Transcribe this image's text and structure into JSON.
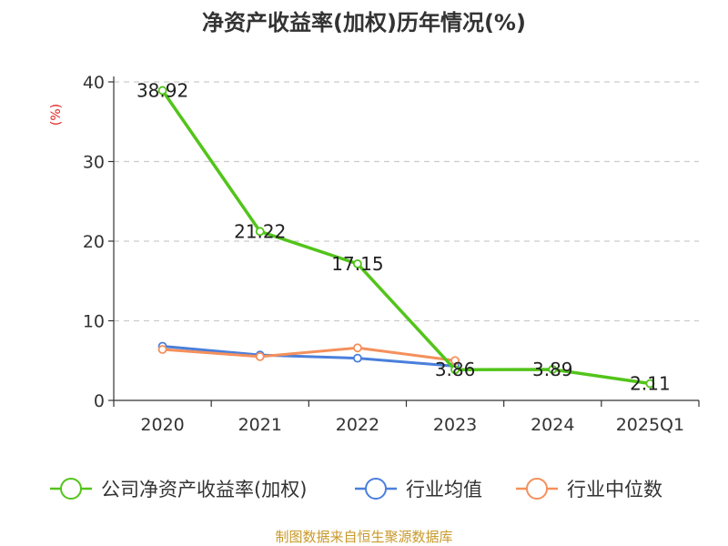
{
  "colors": {
    "roe": "#52c41a",
    "avg": "#4a7fdc",
    "median": "#f4905c",
    "grid": "#cccccc",
    "axis": "#333333"
  },
  "chart_data": {
    "type": "line",
    "title": "净资产收益率(加权)历年情况(%)",
    "ylabel": "(%)",
    "xlabel": "",
    "categories": [
      "2020",
      "2021",
      "2022",
      "2023",
      "2024",
      "2025Q1"
    ],
    "ylim": [
      0,
      40
    ],
    "yticks": [
      0,
      10,
      20,
      30,
      40
    ],
    "grid": true,
    "legend_position": "bottom",
    "series": [
      {
        "key": "roe",
        "name": "公司净资产收益率(加权)",
        "values": [
          38.92,
          21.22,
          17.15,
          3.86,
          3.89,
          2.11
        ],
        "labels": [
          "38.92",
          "21.22",
          "17.15",
          "3.86",
          "3.89",
          "2.11"
        ]
      },
      {
        "key": "avg",
        "name": "行业均值",
        "values": [
          6.8,
          5.7,
          5.3,
          4.3,
          null,
          null
        ]
      },
      {
        "key": "median",
        "name": "行业中位数",
        "values": [
          6.4,
          5.5,
          6.6,
          5.0,
          null,
          null
        ]
      }
    ]
  },
  "source": "制图数据来自恒生聚源数据库"
}
